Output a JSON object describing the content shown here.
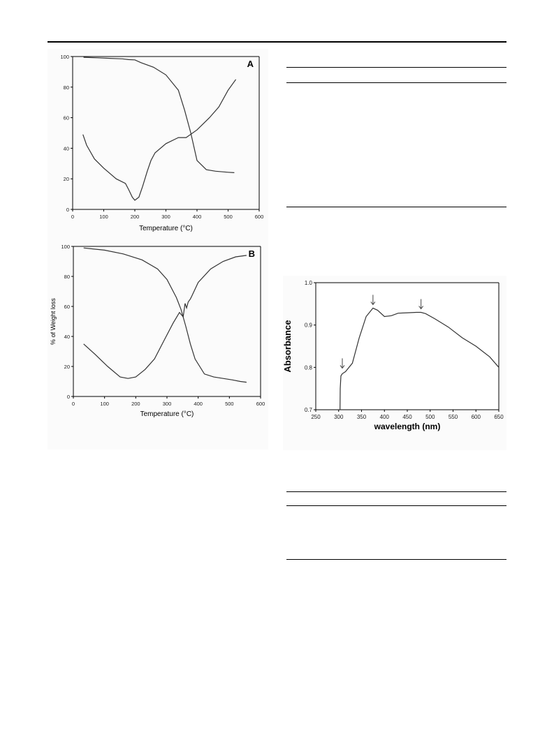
{
  "figures": {
    "A": {
      "panel_label": "A",
      "xlabel": "Temperature (°C)",
      "ylabel": "",
      "xticks": [
        "0",
        "100",
        "200",
        "300",
        "400",
        "500",
        "600"
      ],
      "yticks": [
        "0",
        "20",
        "40",
        "60",
        "80",
        "100"
      ]
    },
    "B": {
      "panel_label": "B",
      "xlabel": "Temperature (°C)",
      "ylabel": "% of Weight loss",
      "xticks": [
        "0",
        "100",
        "200",
        "300",
        "400",
        "500",
        "600"
      ],
      "yticks": [
        "0",
        "20",
        "40",
        "60",
        "80",
        "100"
      ]
    },
    "C": {
      "xlabel": "wavelength (nm)",
      "ylabel": "Absorbance",
      "xticks": [
        "250",
        "300",
        "350",
        "400",
        "450",
        "500",
        "550",
        "600",
        "650"
      ],
      "yticks": [
        "0.7",
        "0.8",
        "0.9",
        "1.0"
      ]
    }
  },
  "chart_data": [
    {
      "id": "A",
      "type": "line",
      "xlim": [
        0,
        600
      ],
      "ylim": [
        0,
        100
      ],
      "grid": false,
      "series": [
        {
          "x": [
            35,
            80,
            120,
            160,
            180,
            200,
            220,
            260,
            300,
            340,
            360,
            380,
            400,
            430,
            460,
            500,
            520
          ],
          "y": [
            99.5,
            99.2,
            98.8,
            98.5,
            98,
            97.8,
            96,
            93,
            88,
            78,
            65,
            50,
            32,
            26,
            25,
            24.3,
            24
          ]
        },
        {
          "x": [
            33,
            45,
            70,
            100,
            140,
            170,
            180,
            192,
            200,
            213,
            225,
            240,
            252,
            265,
            300,
            340,
            365,
            400,
            440,
            470,
            500,
            525
          ],
          "y": [
            49,
            42,
            33,
            27,
            20,
            17,
            13,
            8,
            6,
            8,
            15,
            25,
            32,
            37,
            43,
            47,
            47,
            52,
            60,
            67,
            78,
            85
          ]
        }
      ]
    },
    {
      "id": "B",
      "type": "line",
      "xlim": [
        0,
        600
      ],
      "ylim": [
        0,
        100
      ],
      "grid": false,
      "series": [
        {
          "x": [
            33,
            100,
            160,
            220,
            270,
            300,
            330,
            345,
            360,
            375,
            390,
            420,
            450,
            480,
            510,
            535,
            555
          ],
          "y": [
            99,
            97.5,
            95,
            91,
            85,
            78,
            66,
            58,
            47,
            35,
            25,
            15,
            13,
            12,
            11,
            10,
            9.5
          ]
        },
        {
          "x": [
            33,
            70,
            110,
            150,
            175,
            200,
            230,
            260,
            290,
            320,
            340,
            352,
            358,
            363,
            368,
            375,
            380,
            400,
            440,
            480,
            520,
            555
          ],
          "y": [
            35,
            28,
            20,
            13,
            12,
            13,
            18,
            25,
            37,
            49,
            56,
            53,
            62,
            59,
            63,
            65,
            67,
            76,
            85,
            90,
            93,
            94
          ]
        }
      ]
    },
    {
      "id": "C",
      "type": "line",
      "xlim": [
        250,
        650
      ],
      "ylim": [
        0.7,
        1.0
      ],
      "grid": false,
      "series": [
        {
          "x": [
            303,
            303.5,
            305,
            308,
            315,
            330,
            345,
            360,
            375,
            385,
            400,
            415,
            430,
            450,
            470,
            480,
            490,
            510,
            540,
            570,
            600,
            630,
            650
          ],
          "y": [
            0.7,
            0.75,
            0.78,
            0.785,
            0.79,
            0.81,
            0.87,
            0.92,
            0.94,
            0.935,
            0.92,
            0.922,
            0.928,
            0.929,
            0.93,
            0.93,
            0.927,
            0.915,
            0.895,
            0.87,
            0.85,
            0.825,
            0.8
          ]
        }
      ],
      "annotations": [
        {
          "type": "arrow",
          "x": 308,
          "y": 0.79
        },
        {
          "type": "arrow",
          "x": 375,
          "y": 0.94
        },
        {
          "type": "arrow",
          "x": 480,
          "y": 0.93
        }
      ]
    }
  ]
}
